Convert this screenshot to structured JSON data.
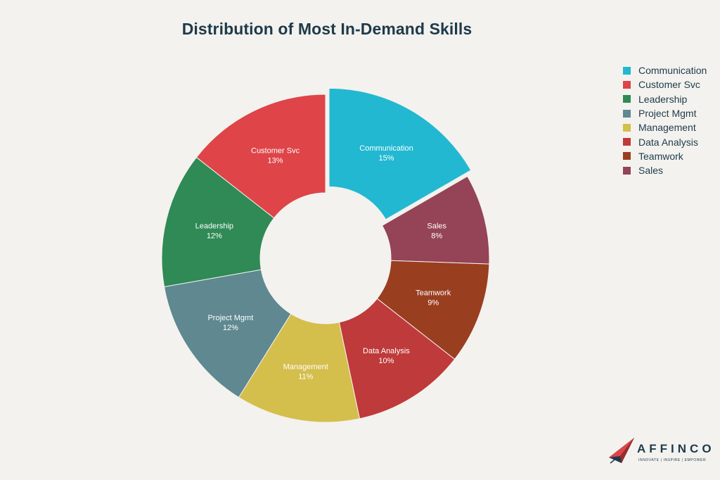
{
  "chart_data": {
    "type": "pie",
    "title": "Distribution of Most In-Demand Skills",
    "labels": [
      "Communication",
      "Sales",
      "Teamwork",
      "Data Analysis",
      "Management",
      "Project Mgmt",
      "Leadership",
      "Customer Svc"
    ],
    "values": [
      15,
      8,
      9,
      10,
      11,
      12,
      12,
      13
    ],
    "value_suffix": "%",
    "colors": [
      "#22b8d1",
      "#954356",
      "#9a3e20",
      "#bf3a3a",
      "#d4be4c",
      "#5f8891",
      "#2f8a55",
      "#de4448"
    ],
    "donut": true,
    "exploded": [
      "Communication"
    ],
    "legend_position": "top-right",
    "legend": [
      {
        "label": "Communication",
        "color": "#22b8d1"
      },
      {
        "label": "Customer Svc",
        "color": "#de4448"
      },
      {
        "label": "Leadership",
        "color": "#2f8a55"
      },
      {
        "label": "Project Mgmt",
        "color": "#5f8891"
      },
      {
        "label": "Management",
        "color": "#d4be4c"
      },
      {
        "label": "Data Analysis",
        "color": "#bf3a3a"
      },
      {
        "label": "Teamwork",
        "color": "#9a3e20"
      },
      {
        "label": "Sales",
        "color": "#954356"
      }
    ]
  },
  "logo": {
    "name": "AFFINCO",
    "tagline": "INNOVATE | INSPIRE | EMPOWER"
  }
}
